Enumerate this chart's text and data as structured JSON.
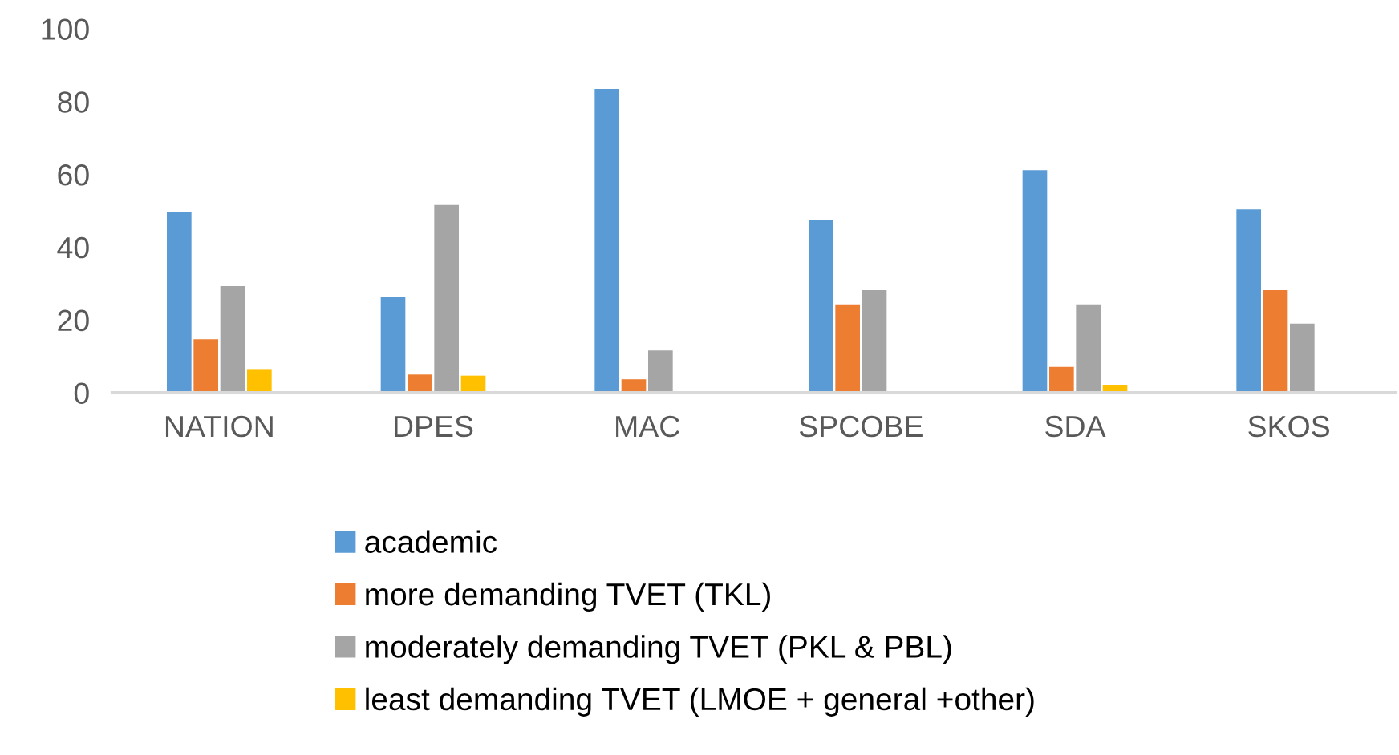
{
  "chart_data": {
    "type": "bar",
    "categories": [
      "NATION",
      "DPES",
      "MAC",
      "SPCOBE",
      "SDA",
      "SKOS"
    ],
    "series": [
      {
        "name": "academic",
        "color": "#5b9bd5",
        "values": [
          49.6,
          26.2,
          83.5,
          47.4,
          61.2,
          50.4
        ]
      },
      {
        "name": "more demanding TVET (TKL)",
        "color": "#ed7d31",
        "values": [
          14.7,
          5.0,
          3.7,
          24.3,
          7.1,
          28.2
        ]
      },
      {
        "name": "moderately demanding TVET (PKL & PBL)",
        "color": "#a5a5a5",
        "values": [
          29.3,
          51.6,
          11.6,
          28.2,
          24.3,
          19.0
        ]
      },
      {
        "name": "least demanding TVET (LMOE + general +other)",
        "color": "#ffc000",
        "values": [
          6.3,
          4.7,
          0,
          0,
          2.2,
          null
        ]
      }
    ],
    "ylim": [
      0,
      100
    ],
    "yticks": [
      0,
      20,
      40,
      60,
      80,
      100
    ],
    "grid": false,
    "legend": "bottom"
  }
}
